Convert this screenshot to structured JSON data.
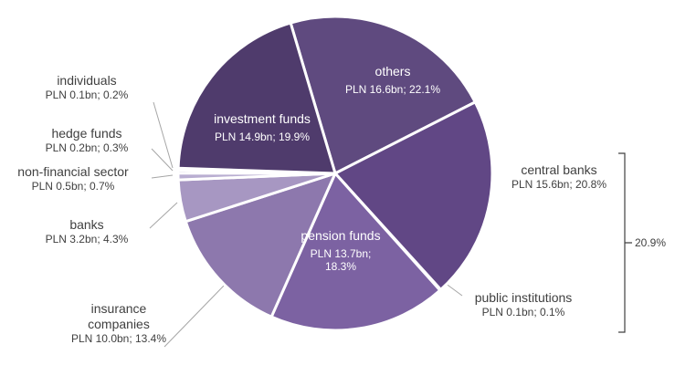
{
  "chart_data": {
    "type": "pie",
    "categories": [
      "others",
      "central banks",
      "public institutions",
      "pension funds",
      "insurance companies",
      "banks",
      "non-financial sector",
      "hedge funds",
      "individuals",
      "investment funds"
    ],
    "values": [
      22.1,
      20.8,
      0.1,
      18.3,
      13.4,
      4.3,
      0.7,
      0.3,
      0.2,
      19.9
    ],
    "value_labels": [
      "PLN 16.6bn; 22.1%",
      "PLN 15.6bn; 20.8%",
      "PLN 0.1bn; 0.1%",
      "PLN 13.7bn; 18.3%",
      "PLN 10.0bn; 13.4%",
      "PLN 3.2bn; 4.3%",
      "PLN 0.5bn; 0.7%",
      "PLN 0.2bn; 0.3%",
      "PLN 0.1bn; 0.2%",
      "PLN 14.9bn; 19.9%"
    ],
    "colors": [
      "#5f4a7f",
      "#614785",
      "#c9c0dc",
      "#7c62a2",
      "#8d78ad",
      "#a797c2",
      "#b9aed1",
      "#c9c0dc",
      "#d9d2e7",
      "#4f3b6c"
    ],
    "annotation": "20.9%"
  }
}
